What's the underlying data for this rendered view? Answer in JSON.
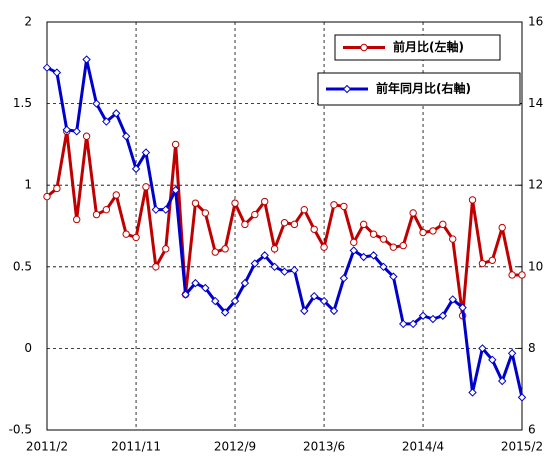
{
  "chart_data": {
    "type": "line",
    "categories": [
      "2011/2",
      null,
      null,
      null,
      null,
      null,
      null,
      null,
      null,
      "2011/11",
      null,
      null,
      null,
      null,
      null,
      null,
      null,
      null,
      null,
      "2012/9",
      null,
      null,
      null,
      null,
      null,
      null,
      null,
      null,
      "2013/6",
      null,
      null,
      null,
      null,
      null,
      null,
      null,
      null,
      null,
      "2014/4",
      null,
      null,
      null,
      null,
      null,
      null,
      null,
      null,
      null,
      "2015/2"
    ],
    "series": [
      {
        "name": "前月比(左軸)",
        "color": "#c00000",
        "marker": "circle",
        "axis": "y",
        "values": [
          0.93,
          0.98,
          1.33,
          0.79,
          1.3,
          0.82,
          0.85,
          0.94,
          0.7,
          0.68,
          0.99,
          0.5,
          0.61,
          1.25,
          0.33,
          0.89,
          0.83,
          0.59,
          0.61,
          0.89,
          0.76,
          0.82,
          0.9,
          0.61,
          0.77,
          0.76,
          0.85,
          0.73,
          0.62,
          0.88,
          0.87,
          0.65,
          0.76,
          0.7,
          0.67,
          0.62,
          0.63,
          0.83,
          0.71,
          0.72,
          0.76,
          0.67,
          0.2,
          0.91,
          0.52,
          0.54,
          0.74,
          0.45,
          0.45
        ]
      },
      {
        "name": "前年同月比(右軸)",
        "color": "#0000cc",
        "marker": "diamond",
        "axis": "y2",
        "values": [
          14.88,
          14.76,
          13.36,
          13.32,
          15.08,
          14.0,
          13.56,
          13.76,
          13.2,
          12.4,
          12.8,
          11.4,
          11.4,
          11.88,
          9.32,
          9.6,
          9.48,
          9.16,
          8.88,
          9.16,
          9.6,
          10.08,
          10.28,
          10.0,
          9.88,
          9.92,
          8.92,
          9.28,
          9.16,
          8.92,
          9.72,
          10.4,
          10.24,
          10.28,
          10.0,
          9.76,
          8.6,
          8.6,
          8.8,
          8.72,
          8.8,
          9.2,
          9.0,
          6.92,
          8.0,
          7.72,
          7.2,
          7.88,
          6.8
        ]
      }
    ],
    "ylim": [
      -0.5,
      2
    ],
    "yticks": [
      -0.5,
      0,
      0.5,
      1,
      1.5,
      2
    ],
    "y2lim": [
      6,
      16
    ],
    "y2ticks": [
      6,
      8,
      10,
      12,
      14,
      16
    ],
    "grid": true
  }
}
